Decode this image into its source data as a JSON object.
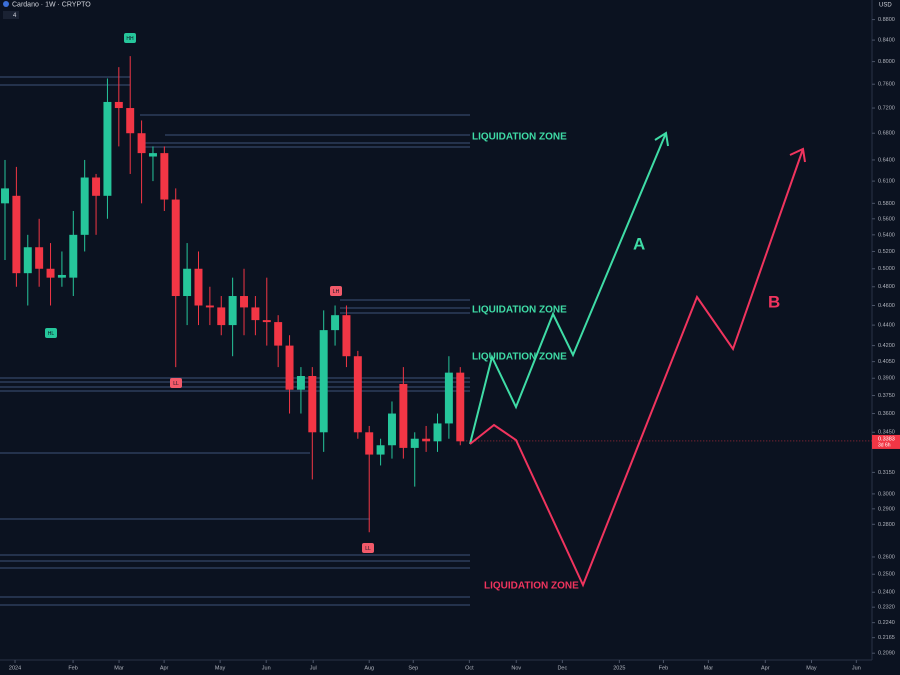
{
  "chart_data": {
    "type": "candlestick",
    "title": "Cardano · 1W · CRYPTO",
    "indicator": "4",
    "currency": "USD",
    "log_scale": true,
    "grid": false,
    "up_color": "#26c69b",
    "down_color": "#f23645",
    "categories": [
      null,
      null,
      null,
      null,
      null,
      null,
      null,
      null,
      null,
      null,
      null,
      null,
      null,
      null,
      null,
      null,
      null,
      null,
      null,
      null,
      null,
      null,
      null,
      null,
      null,
      null,
      null,
      null,
      null,
      null,
      null,
      null,
      null,
      null,
      null,
      null,
      null,
      null,
      null,
      null,
      null
    ],
    "open": [
      0.58,
      0.59,
      0.495,
      0.525,
      0.5,
      0.49,
      0.49,
      0.54,
      0.615,
      0.59,
      0.73,
      0.72,
      0.68,
      0.645,
      0.65,
      0.585,
      0.47,
      0.5,
      0.46,
      0.458,
      0.44,
      0.47,
      0.458,
      0.445,
      0.443,
      0.42,
      0.38,
      0.392,
      0.345,
      0.435,
      0.45,
      0.41,
      0.345,
      0.328,
      0.335,
      0.385,
      0.333,
      0.34,
      0.338,
      0.352,
      0.395
    ],
    "high": [
      0.64,
      0.63,
      0.54,
      0.56,
      0.53,
      0.52,
      0.57,
      0.64,
      0.62,
      0.77,
      0.79,
      0.81,
      0.7,
      0.66,
      0.66,
      0.6,
      0.53,
      0.52,
      0.48,
      0.47,
      0.49,
      0.5,
      0.47,
      0.49,
      0.45,
      0.43,
      0.4,
      0.4,
      0.455,
      0.46,
      0.46,
      0.415,
      0.35,
      0.34,
      0.37,
      0.4,
      0.345,
      0.35,
      0.36,
      0.41,
      0.4
    ],
    "low": [
      0.51,
      0.48,
      0.46,
      0.48,
      0.46,
      0.48,
      0.47,
      0.52,
      0.54,
      0.56,
      0.66,
      0.62,
      0.58,
      0.61,
      0.57,
      0.4,
      0.44,
      0.44,
      0.44,
      0.43,
      0.41,
      0.43,
      0.43,
      0.42,
      0.4,
      0.36,
      0.36,
      0.31,
      0.33,
      0.42,
      0.4,
      0.34,
      0.275,
      0.32,
      0.325,
      0.325,
      0.305,
      0.33,
      0.33,
      0.34,
      0.335
    ],
    "close": [
      0.6,
      0.495,
      0.525,
      0.5,
      0.49,
      0.493,
      0.54,
      0.615,
      0.59,
      0.73,
      0.72,
      0.68,
      0.65,
      0.65,
      0.585,
      0.47,
      0.5,
      0.46,
      0.458,
      0.44,
      0.47,
      0.458,
      0.445,
      0.443,
      0.42,
      0.38,
      0.392,
      0.345,
      0.435,
      0.45,
      0.41,
      0.345,
      0.328,
      0.335,
      0.36,
      0.333,
      0.34,
      0.338,
      0.352,
      0.395,
      0.338
    ],
    "last_price": 0.3383,
    "countdown": "3d 6h",
    "ylim": [
      0.2058,
      0.92
    ],
    "yticks": [
      {
        "value": 0.88,
        "label": "0.8800"
      },
      {
        "value": 0.84,
        "label": "0.8400"
      },
      {
        "value": 0.8,
        "label": "0.8000"
      },
      {
        "value": 0.76,
        "label": "0.7600"
      },
      {
        "value": 0.72,
        "label": "0.7200"
      },
      {
        "value": 0.68,
        "label": "0.6800"
      },
      {
        "value": 0.64,
        "label": "0.6400"
      },
      {
        "value": 0.61,
        "label": "0.6100"
      },
      {
        "value": 0.58,
        "label": "0.5800"
      },
      {
        "value": 0.56,
        "label": "0.5600"
      },
      {
        "value": 0.54,
        "label": "0.5400"
      },
      {
        "value": 0.52,
        "label": "0.5200"
      },
      {
        "value": 0.5,
        "label": "0.5000"
      },
      {
        "value": 0.48,
        "label": "0.4800"
      },
      {
        "value": 0.46,
        "label": "0.4600"
      },
      {
        "value": 0.44,
        "label": "0.4400"
      },
      {
        "value": 0.42,
        "label": "0.4200"
      },
      {
        "value": 0.405,
        "label": "0.4050"
      },
      {
        "value": 0.39,
        "label": "0.3900"
      },
      {
        "value": 0.375,
        "label": "0.3750"
      },
      {
        "value": 0.36,
        "label": "0.3600"
      },
      {
        "value": 0.345,
        "label": "0.3450"
      },
      {
        "value": 0.315,
        "label": "0.3150"
      },
      {
        "value": 0.3,
        "label": "0.3000"
      },
      {
        "value": 0.29,
        "label": "0.2900"
      },
      {
        "value": 0.28,
        "label": "0.2800"
      },
      {
        "value": 0.26,
        "label": "0.2600"
      },
      {
        "value": 0.25,
        "label": "0.2500"
      },
      {
        "value": 0.24,
        "label": "0.2400"
      },
      {
        "value": 0.232,
        "label": "0.2320"
      },
      {
        "value": 0.224,
        "label": "0.2240"
      },
      {
        "value": 0.2165,
        "label": "0.2165"
      },
      {
        "value": 0.209,
        "label": "0.2090"
      }
    ],
    "xlim": [
      -0.44,
      76
    ],
    "xticks": [
      {
        "value": 0.88,
        "label": "2024"
      },
      {
        "value": 5.98,
        "label": "Feb"
      },
      {
        "value": 10.02,
        "label": "Mar"
      },
      {
        "value": 13.98,
        "label": "Apr"
      },
      {
        "value": 18.9,
        "label": "May"
      },
      {
        "value": 22.95,
        "label": "Jun"
      },
      {
        "value": 27.08,
        "label": "Jul"
      },
      {
        "value": 32.0,
        "label": "Aug"
      },
      {
        "value": 35.87,
        "label": "Sep"
      },
      {
        "value": 40.8,
        "label": "Oct"
      },
      {
        "value": 44.92,
        "label": "Nov"
      },
      {
        "value": 48.97,
        "label": "Dec"
      },
      {
        "value": 53.98,
        "label": "2025"
      },
      {
        "value": 57.85,
        "label": "Feb"
      },
      {
        "value": 61.8,
        "label": "Mar"
      },
      {
        "value": 66.8,
        "label": "Apr"
      },
      {
        "value": 70.86,
        "label": "May"
      },
      {
        "value": 74.8,
        "label": "Jun"
      }
    ],
    "annotations": {
      "zone_1": "LIQUIDATION ZONE",
      "zone_2": "LIQUIDATION ZONE",
      "zone_3": "LIQUIDATION ZONE",
      "zone_4": "LIQUIDATION ZONE",
      "path_a": "A",
      "path_b": "B",
      "tag_1": "HH",
      "tag_2": "HL",
      "tag_3": "LL",
      "tag_4": "LH",
      "tag_5": "LL"
    }
  }
}
